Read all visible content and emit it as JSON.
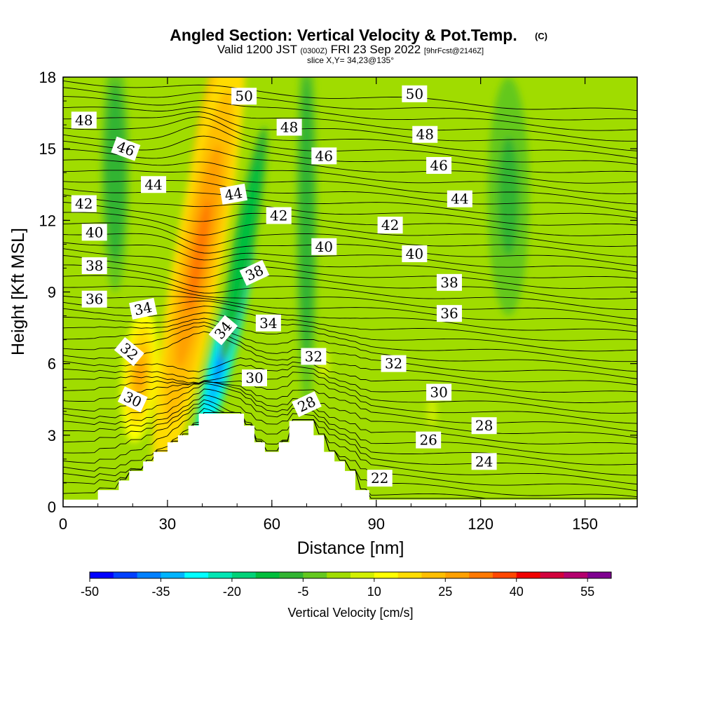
{
  "chart_data": {
    "type": "heatmap",
    "title": "Angled Section: Vertical Velocity & Pot.Temp.",
    "title_suffix": "(C)",
    "subtitle": {
      "valid": "Valid 1200 JST",
      "utc": "(0300Z)",
      "date": "FRI 23 Sep 2022",
      "forecast": "[9hrFcst@2146Z]"
    },
    "slice_info": "slice X,Y= 34,23@135°",
    "xlabel": "Distance [nm]",
    "ylabel": "Height [Kft MSL]",
    "xlim": [
      0,
      165
    ],
    "ylim": [
      0,
      18
    ],
    "x_ticks": [
      "0",
      "30",
      "60",
      "90",
      "120",
      "150"
    ],
    "y_ticks": [
      "0",
      "3",
      "6",
      "9",
      "12",
      "15",
      "18"
    ],
    "colorbar": {
      "label": "Vertical Velocity [cm/s]",
      "min": -50,
      "max": 60,
      "step": 5,
      "tick_labels": [
        "-50",
        "-35",
        "-20",
        "-5",
        "10",
        "25",
        "40",
        "55"
      ],
      "colors": [
        "#0000ff",
        "#0040ff",
        "#0080ff",
        "#00b4ff",
        "#00ffff",
        "#00e6b4",
        "#00d278",
        "#00be3c",
        "#32b432",
        "#64c81e",
        "#a0dc00",
        "#d2f000",
        "#ffff00",
        "#ffdc00",
        "#ffbe00",
        "#ffa000",
        "#ff7800",
        "#ff4600",
        "#f00000",
        "#d2003c",
        "#b4006e",
        "#7f0090"
      ]
    },
    "ridge_profile_kft": [
      [
        0,
        0.3
      ],
      [
        10,
        0.3
      ],
      [
        10,
        0.7
      ],
      [
        16,
        0.7
      ],
      [
        16,
        1.1
      ],
      [
        19,
        1.1
      ],
      [
        19,
        1.5
      ],
      [
        23,
        1.5
      ],
      [
        23,
        1.9
      ],
      [
        26,
        1.9
      ],
      [
        26,
        2.3
      ],
      [
        30,
        2.3
      ],
      [
        30,
        2.7
      ],
      [
        33,
        2.7
      ],
      [
        33,
        3.0
      ],
      [
        36,
        3.0
      ],
      [
        36,
        3.4
      ],
      [
        39,
        3.4
      ],
      [
        39,
        3.9
      ],
      [
        52,
        3.9
      ],
      [
        52,
        3.4
      ],
      [
        55,
        3.4
      ],
      [
        55,
        2.7
      ],
      [
        58,
        2.7
      ],
      [
        58,
        2.3
      ],
      [
        62,
        2.3
      ],
      [
        62,
        2.7
      ],
      [
        65,
        2.7
      ],
      [
        65,
        3.6
      ],
      [
        72,
        3.6
      ],
      [
        72,
        3.0
      ],
      [
        75,
        3.0
      ],
      [
        75,
        2.3
      ],
      [
        78,
        2.3
      ],
      [
        78,
        1.9
      ],
      [
        81,
        1.9
      ],
      [
        81,
        1.5
      ],
      [
        84,
        1.5
      ],
      [
        84,
        0.7
      ],
      [
        88,
        0.7
      ],
      [
        88,
        0.3
      ],
      [
        165,
        0.3
      ]
    ],
    "wind_features": [
      {
        "x": 41,
        "y": 13.5,
        "rx": 5,
        "ry": 6.0,
        "w": 45,
        "rot": 8
      },
      {
        "x": 39,
        "y": 10.5,
        "rx": 7,
        "ry": 9.5,
        "w": 30,
        "rot": 10
      },
      {
        "x": 22,
        "y": 5.5,
        "rx": 5,
        "ry": 2.8,
        "w": 28,
        "rot": 5
      },
      {
        "x": 46,
        "y": 6.5,
        "rx": 3.5,
        "ry": 5.0,
        "w": -40,
        "rot": 14
      },
      {
        "x": 52,
        "y": 11,
        "rx": 3,
        "ry": 5.0,
        "w": -15,
        "rot": 10
      },
      {
        "x": 75,
        "y": 6,
        "rx": 2,
        "ry": 0.8,
        "w": 8,
        "rot": 0
      },
      {
        "x": 106,
        "y": 4,
        "rx": 2.5,
        "ry": 1.2,
        "w": 6,
        "rot": 0
      },
      {
        "x": 70,
        "y": 12,
        "rx": 3,
        "ry": 8,
        "w": -8,
        "rot": 0
      },
      {
        "x": 128,
        "y": 13,
        "rx": 6,
        "ry": 5,
        "w": -7,
        "rot": 0
      },
      {
        "x": 15,
        "y": 14,
        "rx": 4,
        "ry": 5,
        "w": -8,
        "rot": 0
      }
    ],
    "contour_labels": [
      {
        "text": "50",
        "x": 52,
        "y": 17.2,
        "rot": 0
      },
      {
        "text": "50",
        "x": 101,
        "y": 17.3,
        "rot": 0
      },
      {
        "text": "48",
        "x": 6,
        "y": 16.2,
        "rot": 0
      },
      {
        "text": "48",
        "x": 65,
        "y": 15.9,
        "rot": 0
      },
      {
        "text": "48",
        "x": 104,
        "y": 15.6,
        "rot": 0
      },
      {
        "text": "46",
        "x": 18,
        "y": 15.0,
        "rot": 20
      },
      {
        "text": "46",
        "x": 75,
        "y": 14.7,
        "rot": 0
      },
      {
        "text": "46",
        "x": 108,
        "y": 14.3,
        "rot": 0
      },
      {
        "text": "44",
        "x": 26,
        "y": 13.5,
        "rot": 0
      },
      {
        "text": "44",
        "x": 49,
        "y": 13.1,
        "rot": -10
      },
      {
        "text": "44",
        "x": 114,
        "y": 12.9,
        "rot": 0
      },
      {
        "text": "42",
        "x": 6,
        "y": 12.7,
        "rot": 0
      },
      {
        "text": "42",
        "x": 62,
        "y": 12.2,
        "rot": 0
      },
      {
        "text": "42",
        "x": 94,
        "y": 11.8,
        "rot": 0
      },
      {
        "text": "40",
        "x": 9,
        "y": 11.5,
        "rot": 0
      },
      {
        "text": "40",
        "x": 75,
        "y": 10.9,
        "rot": 0
      },
      {
        "text": "40",
        "x": 101,
        "y": 10.6,
        "rot": 0
      },
      {
        "text": "38",
        "x": 9,
        "y": 10.1,
        "rot": 0
      },
      {
        "text": "38",
        "x": 55,
        "y": 9.8,
        "rot": -25
      },
      {
        "text": "38",
        "x": 111,
        "y": 9.4,
        "rot": 0
      },
      {
        "text": "36",
        "x": 9,
        "y": 8.7,
        "rot": 0
      },
      {
        "text": "36",
        "x": 111,
        "y": 8.1,
        "rot": 0
      },
      {
        "text": "34",
        "x": 23,
        "y": 8.3,
        "rot": -12
      },
      {
        "text": "34",
        "x": 46,
        "y": 7.4,
        "rot": -50
      },
      {
        "text": "34",
        "x": 59,
        "y": 7.7,
        "rot": 0
      },
      {
        "text": "32",
        "x": 19,
        "y": 6.5,
        "rot": 40
      },
      {
        "text": "32",
        "x": 72,
        "y": 6.3,
        "rot": 0
      },
      {
        "text": "32",
        "x": 95,
        "y": 6.0,
        "rot": 0
      },
      {
        "text": "30",
        "x": 20,
        "y": 4.5,
        "rot": 25
      },
      {
        "text": "30",
        "x": 55,
        "y": 5.4,
        "rot": 0
      },
      {
        "text": "30",
        "x": 108,
        "y": 4.8,
        "rot": 0
      },
      {
        "text": "28",
        "x": 70,
        "y": 4.3,
        "rot": -25
      },
      {
        "text": "28",
        "x": 121,
        "y": 3.4,
        "rot": 0
      },
      {
        "text": "26",
        "x": 105,
        "y": 2.8,
        "rot": 0
      },
      {
        "text": "24",
        "x": 121,
        "y": 1.9,
        "rot": 0
      },
      {
        "text": "22",
        "x": 91,
        "y": 1.2,
        "rot": 0
      }
    ]
  }
}
